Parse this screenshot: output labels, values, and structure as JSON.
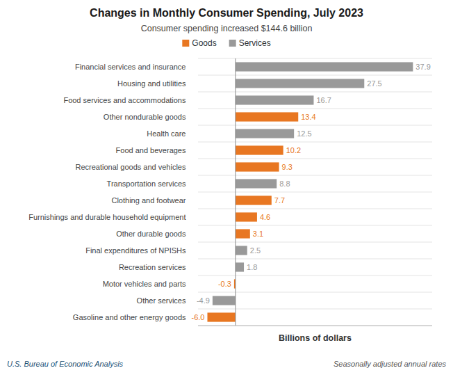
{
  "chart_data": {
    "type": "bar",
    "orientation": "horizontal",
    "title": "Changes in Monthly Consumer Spending, July 2023",
    "subtitle": "Consumer spending increased $144.6 billion",
    "xlabel": "Billions of dollars",
    "annotations": [
      "U.S. Bureau of Economic Analysis",
      "Seasonally adjusted annual rates"
    ],
    "categories": [
      "Financial services and insurance",
      "Housing and utilities",
      "Food services and accommodations",
      "Other nondurable goods",
      "Health care",
      "Food and beverages",
      "Recreational goods and vehicles",
      "Transportation services",
      "Clothing and footwear",
      "Furnishings and durable household equipment",
      "Other durable goods",
      "Final expenditures of NPISHs",
      "Recreation services",
      "Motor vehicles and parts",
      "Other services",
      "Gasoline and other energy goods"
    ],
    "series": [
      {
        "name": "Goods",
        "color": "#E87722",
        "values": [
          null,
          null,
          null,
          13.4,
          null,
          10.2,
          9.3,
          null,
          7.7,
          4.6,
          3.1,
          null,
          null,
          -0.3,
          null,
          -6.0
        ],
        "value_labels": [
          null,
          null,
          null,
          "13.4",
          null,
          "10.2",
          "9.3",
          null,
          "7.7",
          "4.6",
          "3.1",
          null,
          null,
          "-0.3",
          null,
          "-6.0"
        ]
      },
      {
        "name": "Services",
        "color": "#999999",
        "values": [
          37.9,
          27.5,
          16.7,
          null,
          12.5,
          null,
          null,
          8.8,
          null,
          null,
          null,
          2.5,
          1.8,
          null,
          -4.9,
          null
        ],
        "value_labels": [
          "37.9",
          "27.5",
          "16.7",
          null,
          "12.5",
          null,
          null,
          "8.8",
          null,
          null,
          null,
          "2.5",
          "1.8",
          null,
          "-4.9",
          null
        ]
      }
    ],
    "xlim": [
      -8,
      42
    ],
    "xticks": [
      0
    ],
    "data_labels": true,
    "tick_labels": "y",
    "grid": false,
    "legend": "top"
  }
}
